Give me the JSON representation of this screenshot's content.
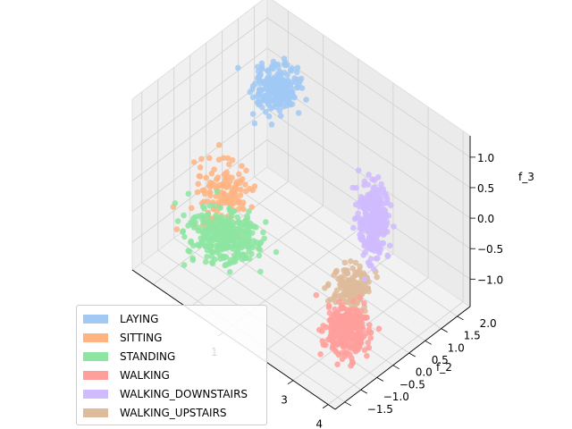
{
  "chart_data": {
    "type": "scatter",
    "projection": "3d",
    "title": "",
    "xlabel": "",
    "ylabel": "f_2",
    "zlabel": "f_3",
    "xlim": [
      -1.6,
      4.2
    ],
    "ylim": [
      -1.8,
      2.4
    ],
    "zlim": [
      -1.45,
      1.35
    ],
    "x_ticks": [
      1,
      3,
      4
    ],
    "x_tick_labels": [
      "1",
      "3",
      "4"
    ],
    "y_ticks": [
      -1.5,
      -1.0,
      -0.5,
      0.0,
      0.5,
      1.0,
      1.5,
      2.0
    ],
    "y_tick_labels": [
      "−1.5",
      "−1.0",
      "−0.5",
      "0.0",
      "0.5",
      "1.0",
      "1.5",
      "2.0"
    ],
    "z_ticks": [
      -1.0,
      -0.5,
      0.0,
      0.5,
      1.0
    ],
    "z_tick_labels": [
      "−1.0",
      "−0.5",
      "0.0",
      "0.5",
      "1.0"
    ],
    "grid": true,
    "legend_position": "lower-left",
    "series": [
      {
        "name": "LAYING",
        "color": "#a1c9f4",
        "center": [
          -0.6,
          1.6,
          0.55
        ],
        "spread": [
          0.22,
          0.25,
          0.14
        ],
        "count": 260
      },
      {
        "name": "SITTING",
        "color": "#ffb482",
        "center": [
          -0.7,
          0.0,
          -0.55
        ],
        "spread": [
          0.3,
          0.3,
          0.22
        ],
        "count": 140
      },
      {
        "name": "STANDING",
        "color": "#8de5a1",
        "center": [
          -0.3,
          -0.3,
          -1.0
        ],
        "spread": [
          0.4,
          0.35,
          0.12
        ],
        "count": 320
      },
      {
        "name": "WALKING",
        "color": "#ff9f9b",
        "center": [
          3.05,
          -0.2,
          -1.25
        ],
        "spread": [
          0.22,
          0.22,
          0.16
        ],
        "count": 300
      },
      {
        "name": "WALKING_DOWNSTAIRS",
        "color": "#d0bbff",
        "center": [
          3.0,
          0.7,
          0.15
        ],
        "spread": [
          0.15,
          0.15,
          0.3
        ],
        "count": 320
      },
      {
        "name": "WALKING_UPSTAIRS",
        "color": "#debb9b",
        "center": [
          2.9,
          0.1,
          -0.75
        ],
        "spread": [
          0.2,
          0.2,
          0.12
        ],
        "count": 160
      }
    ]
  }
}
